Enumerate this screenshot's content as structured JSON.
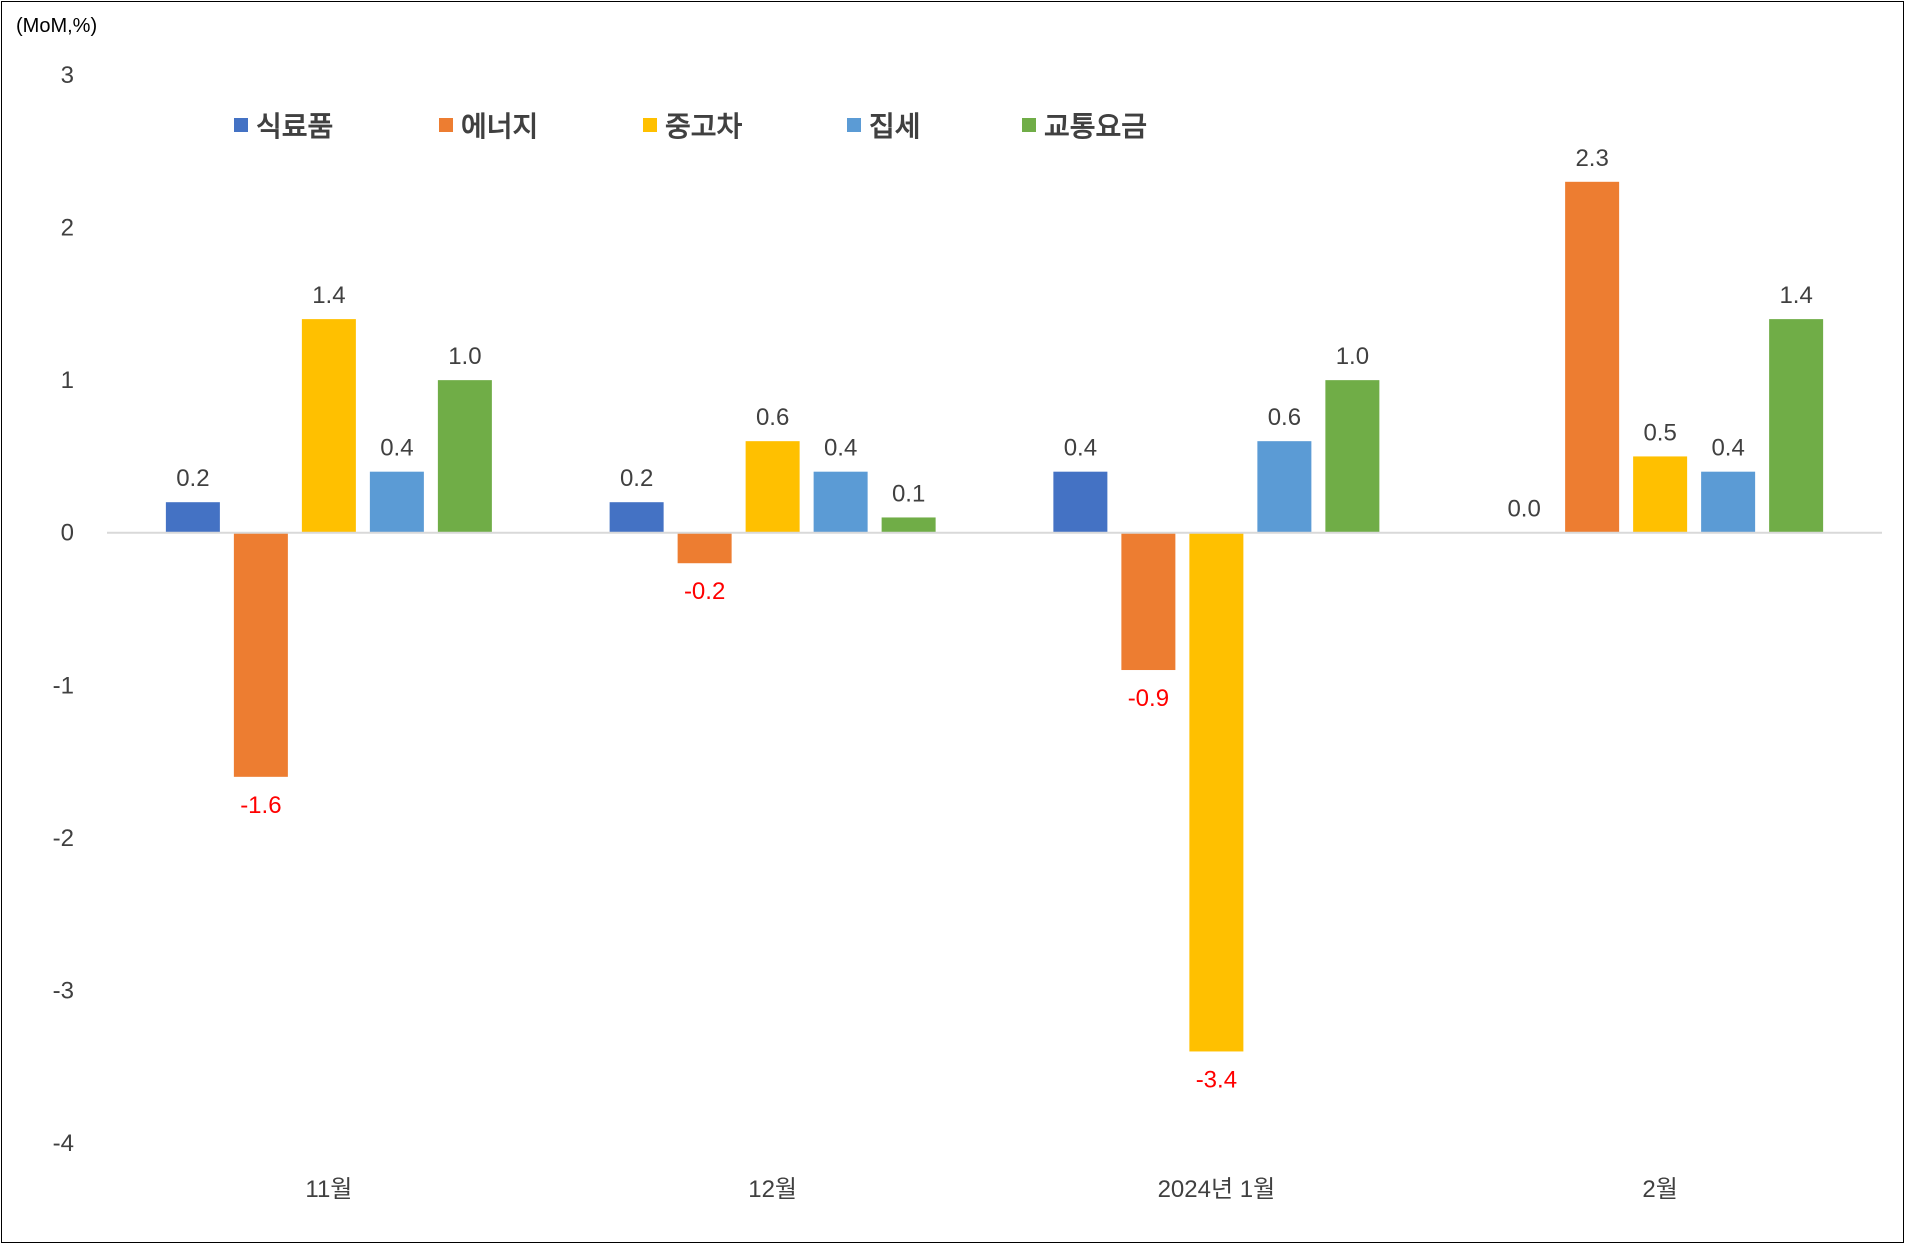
{
  "chart_data": {
    "type": "bar",
    "unit_label": "(MoM,%)",
    "categories": [
      "11월",
      "12월",
      "2024년 1월",
      "2월"
    ],
    "series": [
      {
        "name": "식료품",
        "color": "#4472C4",
        "values": [
          0.2,
          0.2,
          0.4,
          0.0
        ]
      },
      {
        "name": "에너지",
        "color": "#ED7D31",
        "values": [
          -1.6,
          -0.2,
          -0.9,
          2.3
        ]
      },
      {
        "name": "중고차",
        "color": "#FFC000",
        "values": [
          1.4,
          0.6,
          -3.4,
          0.5
        ]
      },
      {
        "name": "집세",
        "color": "#5B9BD5",
        "values": [
          0.4,
          0.4,
          0.6,
          0.4
        ]
      },
      {
        "name": "교통요금",
        "color": "#70AD47",
        "values": [
          1.0,
          0.1,
          1.0,
          1.4
        ]
      }
    ],
    "ylim": [
      -4,
      3
    ],
    "yticks": [
      3,
      2,
      1,
      0,
      -1,
      -2,
      -3,
      -4
    ],
    "grid": false,
    "legend_position": "top",
    "data_label_color_positive": "#404040",
    "data_label_color_negative": "#FF0000"
  }
}
